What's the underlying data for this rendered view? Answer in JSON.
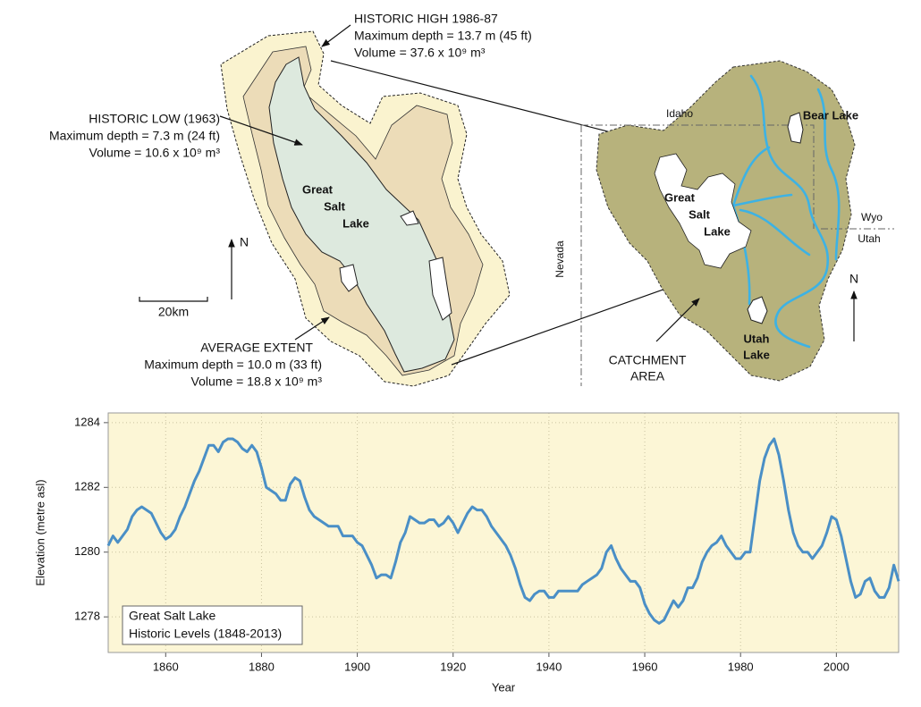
{
  "lake_map": {
    "historic_high": {
      "title": "HISTORIC HIGH 1986-87",
      "depth": "Maximum depth = 13.7 m (45 ft)",
      "volume": "Volume = 37.6  x 10⁹ m³"
    },
    "historic_low": {
      "title": "HISTORIC LOW (1963)",
      "depth": "Maximum depth = 7.3 m (24 ft)",
      "volume": "Volume = 10.6 x 10⁹ m³"
    },
    "average_extent": {
      "title": "AVERAGE EXTENT",
      "depth": "Maximum depth = 10.0 m (33 ft)",
      "volume": "Volume = 18.8  x 10⁹ m³"
    },
    "lake_label": [
      "Great",
      "Salt",
      "Lake"
    ],
    "north": "N",
    "scale": "20km"
  },
  "catchment_map": {
    "states": {
      "idaho": "Idaho",
      "wyo": "Wyo",
      "utah": "Utah",
      "nevada": "Nevada"
    },
    "bear_lake": "Bear Lake",
    "great_salt_lake": [
      "Great",
      "Salt",
      "Lake"
    ],
    "utah_lake": [
      "Utah",
      "Lake"
    ],
    "north": "N",
    "catchment_area": [
      "CATCHMENT",
      "AREA"
    ]
  },
  "chart_data": {
    "type": "line",
    "x_label": "Year",
    "y_label": "Elevation (metre asl)",
    "annotation": "Historic Levels (1848-2013)",
    "x": [
      1848,
      1849,
      1850,
      1851,
      1852,
      1853,
      1854,
      1855,
      1856,
      1857,
      1858,
      1859,
      1860,
      1861,
      1862,
      1863,
      1864,
      1865,
      1866,
      1867,
      1868,
      1869,
      1870,
      1871,
      1872,
      1873,
      1874,
      1875,
      1876,
      1877,
      1878,
      1879,
      1880,
      1881,
      1882,
      1883,
      1884,
      1885,
      1886,
      1887,
      1888,
      1889,
      1890,
      1891,
      1892,
      1893,
      1894,
      1895,
      1896,
      1897,
      1898,
      1899,
      1900,
      1901,
      1902,
      1903,
      1904,
      1905,
      1906,
      1907,
      1908,
      1909,
      1910,
      1911,
      1912,
      1913,
      1914,
      1915,
      1916,
      1917,
      1918,
      1919,
      1920,
      1921,
      1922,
      1923,
      1924,
      1925,
      1926,
      1927,
      1928,
      1929,
      1930,
      1931,
      1932,
      1933,
      1934,
      1935,
      1936,
      1937,
      1938,
      1939,
      1940,
      1941,
      1942,
      1943,
      1944,
      1945,
      1946,
      1947,
      1948,
      1949,
      1950,
      1951,
      1952,
      1953,
      1954,
      1955,
      1956,
      1957,
      1958,
      1959,
      1960,
      1961,
      1962,
      1963,
      1964,
      1965,
      1966,
      1967,
      1968,
      1969,
      1970,
      1971,
      1972,
      1973,
      1974,
      1975,
      1976,
      1977,
      1978,
      1979,
      1980,
      1981,
      1982,
      1983,
      1984,
      1985,
      1986,
      1987,
      1988,
      1989,
      1990,
      1991,
      1992,
      1993,
      1994,
      1995,
      1996,
      1997,
      1998,
      1999,
      2000,
      2001,
      2002,
      2003,
      2004,
      2005,
      2006,
      2007,
      2008,
      2009,
      2010,
      2011,
      2012,
      2013
    ],
    "series": [
      {
        "name": "Great Salt Lake",
        "color": "#4a8fc6",
        "values": [
          1280.2,
          1280.5,
          1280.3,
          1280.5,
          1280.7,
          1281.1,
          1281.3,
          1281.4,
          1281.3,
          1281.2,
          1280.9,
          1280.6,
          1280.4,
          1280.5,
          1280.7,
          1281.1,
          1281.4,
          1281.8,
          1282.2,
          1282.5,
          1282.9,
          1283.3,
          1283.3,
          1283.1,
          1283.4,
          1283.5,
          1283.5,
          1283.4,
          1283.2,
          1283.1,
          1283.3,
          1283.1,
          1282.6,
          1282.0,
          1281.9,
          1281.8,
          1281.6,
          1281.6,
          1282.1,
          1282.3,
          1282.2,
          1281.7,
          1281.3,
          1281.1,
          1281.0,
          1280.9,
          1280.8,
          1280.8,
          1280.8,
          1280.5,
          1280.5,
          1280.5,
          1280.3,
          1280.2,
          1279.9,
          1279.6,
          1279.2,
          1279.3,
          1279.3,
          1279.2,
          1279.7,
          1280.3,
          1280.6,
          1281.1,
          1281.0,
          1280.9,
          1280.9,
          1281.0,
          1281.0,
          1280.8,
          1280.9,
          1281.1,
          1280.9,
          1280.6,
          1280.9,
          1281.2,
          1281.4,
          1281.3,
          1281.3,
          1281.1,
          1280.8,
          1280.6,
          1280.4,
          1280.2,
          1279.9,
          1279.5,
          1279.0,
          1278.6,
          1278.5,
          1278.7,
          1278.8,
          1278.8,
          1278.6,
          1278.6,
          1278.8,
          1278.8,
          1278.8,
          1278.8,
          1278.8,
          1279.0,
          1279.1,
          1279.2,
          1279.3,
          1279.5,
          1280.0,
          1280.2,
          1279.8,
          1279.5,
          1279.3,
          1279.1,
          1279.1,
          1278.9,
          1278.4,
          1278.1,
          1277.9,
          1277.8,
          1277.9,
          1278.2,
          1278.5,
          1278.3,
          1278.5,
          1278.9,
          1278.9,
          1279.2,
          1279.7,
          1280.0,
          1280.2,
          1280.3,
          1280.5,
          1280.2,
          1280.0,
          1279.8,
          1279.8,
          1280.0,
          1280.0,
          1281.1,
          1282.2,
          1282.9,
          1283.3,
          1283.5,
          1283.0,
          1282.2,
          1281.3,
          1280.6,
          1280.2,
          1280.0,
          1280.0,
          1279.8,
          1280.0,
          1280.2,
          1280.6,
          1281.1,
          1281.0,
          1280.5,
          1279.8,
          1279.1,
          1278.6,
          1278.7,
          1279.1,
          1279.2,
          1278.8,
          1278.6,
          1278.6,
          1278.9,
          1279.6,
          1279.1
        ]
      }
    ],
    "xlim": [
      1848,
      2013
    ],
    "ylim": [
      1276.9,
      1284.3
    ],
    "xticks": [
      1860,
      1880,
      1900,
      1920,
      1940,
      1960,
      1980,
      2000
    ],
    "yticks": [
      1278,
      1280,
      1282,
      1284
    ],
    "grid": true,
    "background": "#fcf6d6"
  }
}
